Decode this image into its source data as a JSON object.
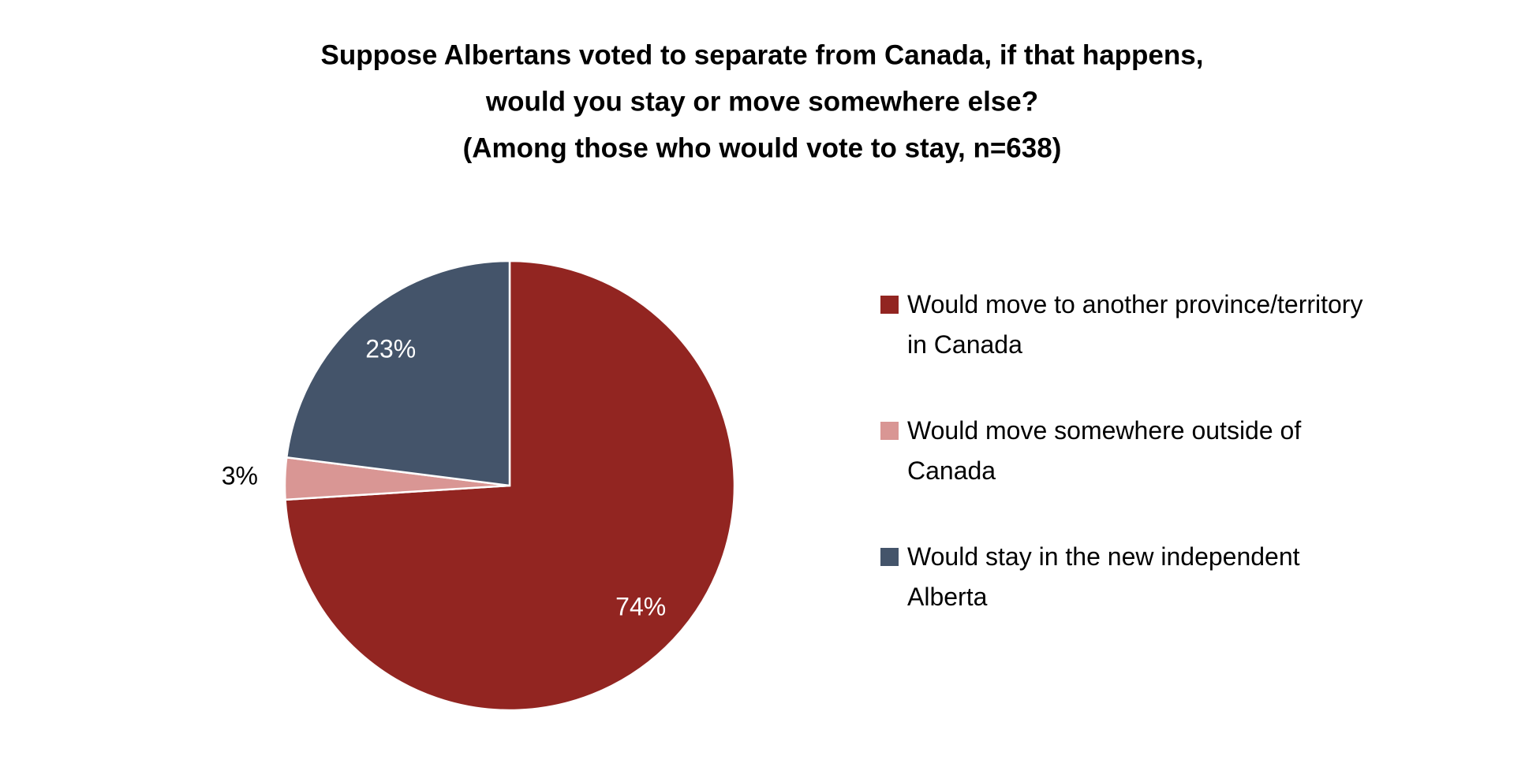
{
  "chart_data": {
    "type": "pie",
    "title": [
      "Suppose Albertans voted to separate from Canada, if that happens,",
      "would you stay or move somewhere else?",
      "(Among those who would vote to stay, n=638)"
    ],
    "categories": [
      "Would move to another province/territory in Canada",
      "Would move somewhere outside of Canada",
      "Would stay in the new independent Alberta"
    ],
    "values": [
      74,
      3,
      23
    ],
    "value_labels": [
      "74%",
      "3%",
      "23%"
    ],
    "colors": [
      "#922521",
      "#d99694",
      "#44546a"
    ],
    "legend": "right"
  }
}
